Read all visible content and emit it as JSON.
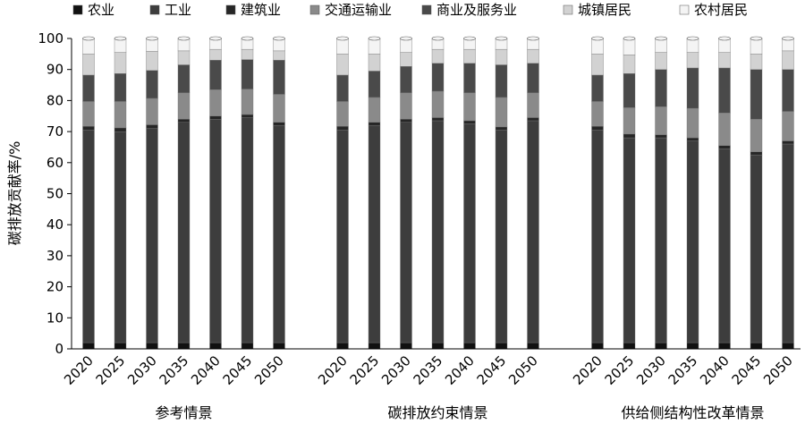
{
  "chart_data": {
    "type": "bar",
    "stacked": true,
    "ylabel": "碳排放贡献率/%",
    "ylim": [
      0,
      100
    ],
    "yticks": [
      0,
      10,
      20,
      30,
      40,
      50,
      60,
      70,
      80,
      90,
      100
    ],
    "legend_position": "top",
    "series": [
      {
        "name": "农业",
        "color": "#111111"
      },
      {
        "name": "工业",
        "color": "#3d3d3d"
      },
      {
        "name": "建筑业",
        "color": "#262626"
      },
      {
        "name": "交通运输业",
        "color": "#8a8a8a"
      },
      {
        "name": "商业及服务业",
        "color": "#4a4a4a"
      },
      {
        "name": "城镇居民",
        "color": "#d2d2d2"
      },
      {
        "name": "农村居民",
        "color": "#f4f4f4"
      }
    ],
    "groups": [
      {
        "name": "参考情景",
        "categories": [
          "2020",
          "2025",
          "2030",
          "2035",
          "2040",
          "2045",
          "2050"
        ],
        "stacks": [
          [
            2,
            68.5,
            1.2,
            8,
            8.5,
            6.8,
            5
          ],
          [
            2,
            68,
            1.2,
            8.5,
            9,
            6.8,
            4.5
          ],
          [
            2,
            69,
            1.2,
            8.5,
            9,
            6.2,
            4.1
          ],
          [
            2,
            71,
            1,
            8.5,
            9,
            4.5,
            4
          ],
          [
            2,
            72,
            1,
            8.5,
            9.5,
            3.5,
            3.5
          ],
          [
            2,
            72.5,
            1,
            8.2,
            9.5,
            3.3,
            3.5
          ],
          [
            2,
            70,
            1,
            9,
            11,
            3,
            4
          ]
        ]
      },
      {
        "name": "碳排放约束情景",
        "categories": [
          "2020",
          "2025",
          "2030",
          "2035",
          "2040",
          "2045",
          "2050"
        ],
        "stacks": [
          [
            2,
            68.5,
            1.2,
            8,
            8.5,
            6.8,
            5
          ],
          [
            2,
            70,
            1,
            8,
            8.5,
            5.5,
            5
          ],
          [
            2,
            71,
            1,
            8.5,
            8.5,
            4.5,
            4.5
          ],
          [
            2,
            71.5,
            1,
            8.5,
            9,
            4.5,
            3.5
          ],
          [
            2,
            70.5,
            1,
            9,
            9.5,
            4.5,
            3.5
          ],
          [
            2,
            68.5,
            1,
            9.5,
            10.5,
            5,
            3.5
          ],
          [
            2,
            71.5,
            1,
            8,
            9.5,
            4.5,
            3.5
          ]
        ]
      },
      {
        "name": "供给侧结构性改革情景",
        "categories": [
          "2020",
          "2025",
          "2030",
          "2035",
          "2040",
          "2045",
          "2050"
        ],
        "stacks": [
          [
            2,
            68.5,
            1.2,
            8,
            8.5,
            6.8,
            5
          ],
          [
            2,
            66,
            1.2,
            8.5,
            11,
            6,
            5.3
          ],
          [
            2,
            66,
            1,
            9,
            12,
            5.5,
            4.5
          ],
          [
            2,
            65,
            1,
            9.5,
            13,
            5,
            4.5
          ],
          [
            2,
            62.5,
            1,
            10.5,
            14.5,
            5,
            4.5
          ],
          [
            2,
            60.5,
            1,
            10.5,
            16,
            5,
            5
          ],
          [
            2,
            64,
            1,
            9.5,
            13.5,
            6,
            4
          ]
        ]
      }
    ]
  }
}
